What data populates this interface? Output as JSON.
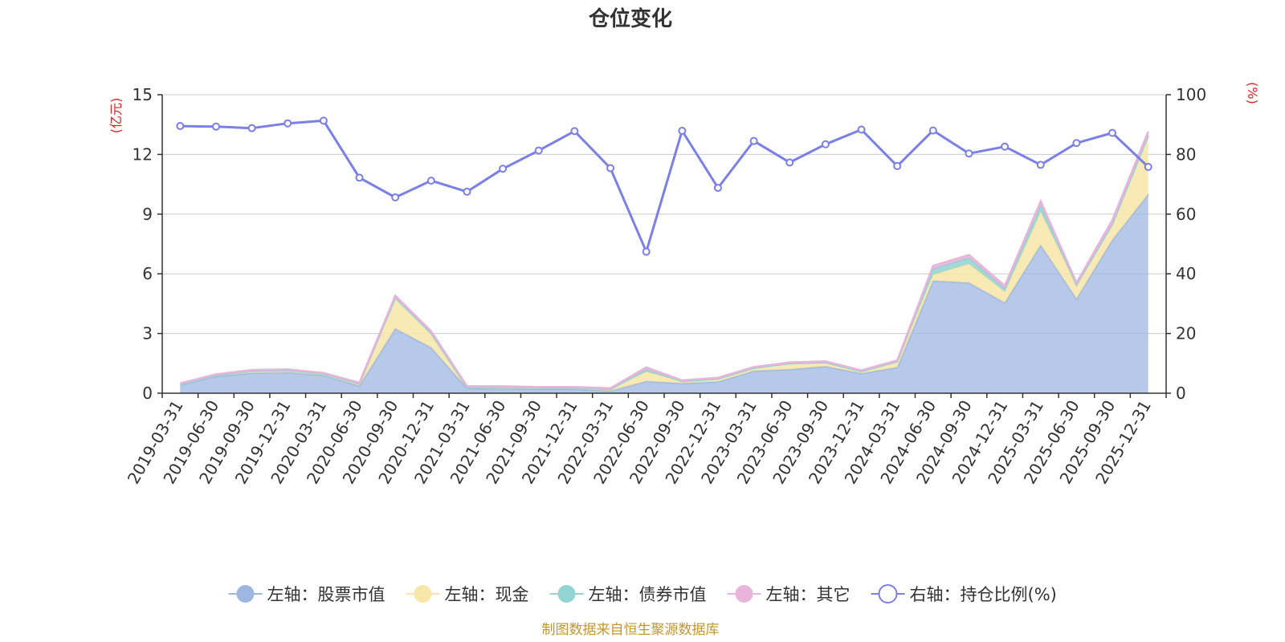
{
  "chart_data": {
    "type": "area",
    "title": "仓位变化",
    "left_axis_unit": "(亿元)",
    "right_axis_unit": "(%)",
    "left_ylim": [
      0,
      15
    ],
    "left_ticks": [
      "0",
      "3",
      "6",
      "9",
      "12",
      "15"
    ],
    "right_ylim": [
      0,
      100
    ],
    "right_ticks": [
      "0",
      "20",
      "40",
      "60",
      "80",
      "100"
    ],
    "grid": true,
    "legend_position": "bottom",
    "categories": [
      "2019-03-31",
      "2019-06-30",
      "2019-09-30",
      "2019-12-31",
      "2020-03-31",
      "2020-06-30",
      "2020-09-30",
      "2020-12-31",
      "2021-03-31",
      "2021-06-30",
      "2021-09-30",
      "2021-12-31",
      "2022-03-31",
      "2022-06-30",
      "2022-09-30",
      "2022-12-31",
      "2023-03-31",
      "2023-06-30",
      "2023-09-30",
      "2023-12-31",
      "2024-03-31",
      "2024-06-30",
      "2024-09-30",
      "2024-12-31",
      "2025-03-31",
      "2025-06-30",
      "2025-09-30",
      "2025-12-31"
    ],
    "series": [
      {
        "name": "左轴：股票市值",
        "axis": "left",
        "color": "#9db7e0",
        "values": [
          0.42,
          0.85,
          1.02,
          1.05,
          0.9,
          0.38,
          3.25,
          2.3,
          0.25,
          0.22,
          0.2,
          0.2,
          0.12,
          0.6,
          0.5,
          0.58,
          1.12,
          1.2,
          1.35,
          1.0,
          1.3,
          5.65,
          5.55,
          4.55,
          7.45,
          4.75,
          7.7,
          10.0
        ]
      },
      {
        "name": "左轴：现金",
        "axis": "left",
        "color": "#f8e6a8",
        "values": [
          0.03,
          0.05,
          0.1,
          0.1,
          0.07,
          0.1,
          1.55,
          0.72,
          0.05,
          0.08,
          0.06,
          0.06,
          0.08,
          0.48,
          0.1,
          0.15,
          0.15,
          0.3,
          0.2,
          0.1,
          0.3,
          0.3,
          0.95,
          0.55,
          1.65,
          0.7,
          0.8,
          2.95
        ]
      },
      {
        "name": "左轴：债券市值",
        "axis": "left",
        "color": "#92d3d3",
        "values": [
          0.0,
          0.0,
          0.0,
          0.0,
          0.0,
          0.0,
          0.0,
          0.0,
          0.0,
          0.0,
          0.0,
          0.0,
          0.0,
          0.12,
          0.0,
          0.0,
          0.0,
          0.0,
          0.0,
          0.0,
          0.0,
          0.3,
          0.3,
          0.15,
          0.35,
          0.0,
          0.0,
          0.0
        ]
      },
      {
        "name": "左轴：其它",
        "axis": "left",
        "color": "#e8b4d9",
        "values": [
          0.05,
          0.05,
          0.05,
          0.05,
          0.05,
          0.05,
          0.1,
          0.1,
          0.05,
          0.05,
          0.05,
          0.05,
          0.05,
          0.1,
          0.05,
          0.05,
          0.05,
          0.05,
          0.05,
          0.05,
          0.05,
          0.15,
          0.15,
          0.15,
          0.2,
          0.1,
          0.2,
          0.2
        ]
      },
      {
        "name": "右轴：持仓比例(%)",
        "axis": "right",
        "color": "#7b7fe8",
        "values": [
          89.5,
          89.3,
          88.8,
          90.4,
          91.3,
          72.2,
          65.6,
          71.2,
          67.5,
          75.2,
          81.3,
          87.8,
          75.4,
          47.4,
          87.9,
          68.8,
          84.5,
          77.3,
          83.4,
          88.3,
          76.1,
          88.0,
          80.3,
          82.6,
          76.5,
          83.8,
          87.2,
          75.8
        ]
      }
    ]
  },
  "footer": {
    "source": "制图数据来自恒生聚源数据库",
    "source_color": "#c8962a"
  },
  "colors": {
    "unit_label": "#e02020",
    "axis": "#333333",
    "grid": "#cccccc"
  }
}
